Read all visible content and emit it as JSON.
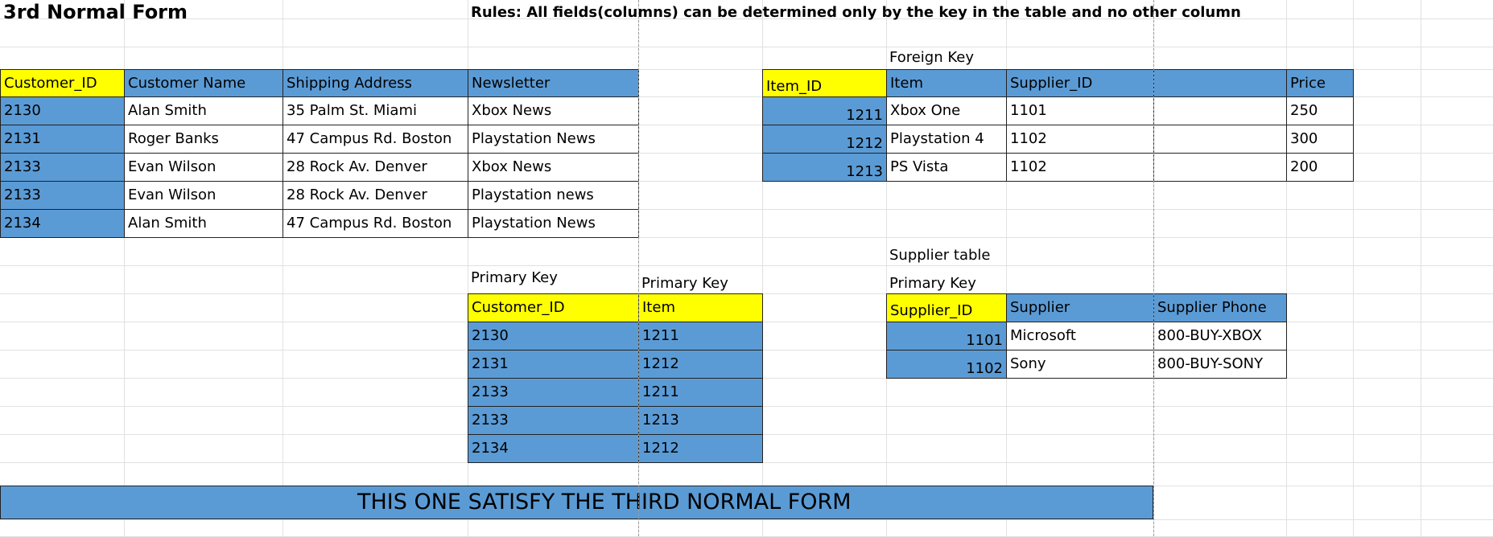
{
  "sheet": {
    "title": "3rd Normal Form",
    "rules": "Rules: All fields(columns) can be determined only by the key in the table and no other column",
    "labels": {
      "foreign_key": "Foreign Key",
      "primary_key_1": "Primary Key",
      "primary_key_2": "Primary Key",
      "supplier_table": "Supplier table",
      "primary_key_3": "Primary Key"
    },
    "customer_table": {
      "headers": [
        "Customer_ID",
        "Customer Name",
        "Shipping Address",
        "Newsletter"
      ],
      "rows": [
        [
          "2130",
          "Alan Smith",
          "35 Palm St. Miami",
          "Xbox News"
        ],
        [
          "2131",
          "Roger Banks",
          "47 Campus Rd. Boston",
          "Playstation News"
        ],
        [
          "2133",
          "Evan Wilson",
          "28 Rock Av. Denver",
          "Xbox News"
        ],
        [
          "2133",
          "Evan Wilson",
          "28 Rock Av. Denver",
          "Playstation news"
        ],
        [
          "2134",
          "Alan Smith",
          "47 Campus Rd. Boston",
          "Playstation News"
        ]
      ]
    },
    "item_table": {
      "headers": [
        "Item_ID",
        "Item",
        "Supplier_ID",
        "",
        "Price"
      ],
      "rows": [
        [
          "1211",
          "Xbox One",
          "1101",
          "",
          "250"
        ],
        [
          "1212",
          "Playstation 4",
          "1102",
          "",
          "300"
        ],
        [
          "1213",
          "PS Vista",
          "1102",
          "",
          "200"
        ]
      ]
    },
    "order_table": {
      "headers": [
        "Customer_ID",
        "Item"
      ],
      "rows": [
        [
          "2130",
          "1211"
        ],
        [
          "2131",
          "1212"
        ],
        [
          "2133",
          "1211"
        ],
        [
          "2133",
          "1213"
        ],
        [
          "2134",
          "1212"
        ]
      ]
    },
    "supplier_table": {
      "headers": [
        "Supplier_ID",
        "Supplier",
        "Supplier Phone"
      ],
      "rows": [
        [
          "1101",
          "Microsoft",
          "800-BUY-XBOX"
        ],
        [
          "1102",
          "Sony",
          "800-BUY-SONY"
        ]
      ]
    },
    "banner": "THIS ONE SATISFY THE THIRD NORMAL FORM",
    "colors": {
      "header_key": "#ffff00",
      "key_column": "#5b9bd5",
      "grid": "#e1e1e1"
    }
  }
}
